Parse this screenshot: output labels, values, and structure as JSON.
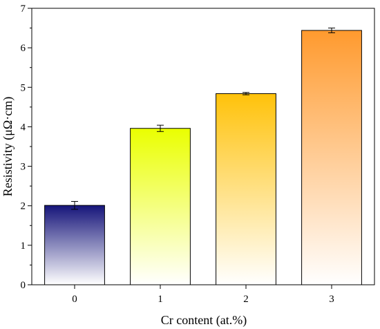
{
  "chart_data": {
    "type": "bar",
    "title": "",
    "xlabel": "Cr content (at.%)",
    "ylabel": "Resistivity (μΩ·cm)",
    "categories": [
      "0",
      "1",
      "2",
      "3"
    ],
    "values": [
      2.01,
      3.96,
      4.84,
      6.44
    ],
    "error_bars": [
      0.1,
      0.08,
      0.03,
      0.06
    ],
    "ylim": [
      0,
      7
    ],
    "yticks": [
      "0",
      "1",
      "2",
      "3",
      "4",
      "5",
      "6",
      "7"
    ],
    "bar_gradients": [
      {
        "top": "#16157a",
        "bottom": "#ffffff"
      },
      {
        "top": "#eaff00",
        "bottom": "#ffffff"
      },
      {
        "top": "#ffc20a",
        "bottom": "#ffffff"
      },
      {
        "top": "#ff9a2e",
        "bottom": "#ffffff"
      }
    ],
    "grid": false,
    "legend": "none"
  }
}
